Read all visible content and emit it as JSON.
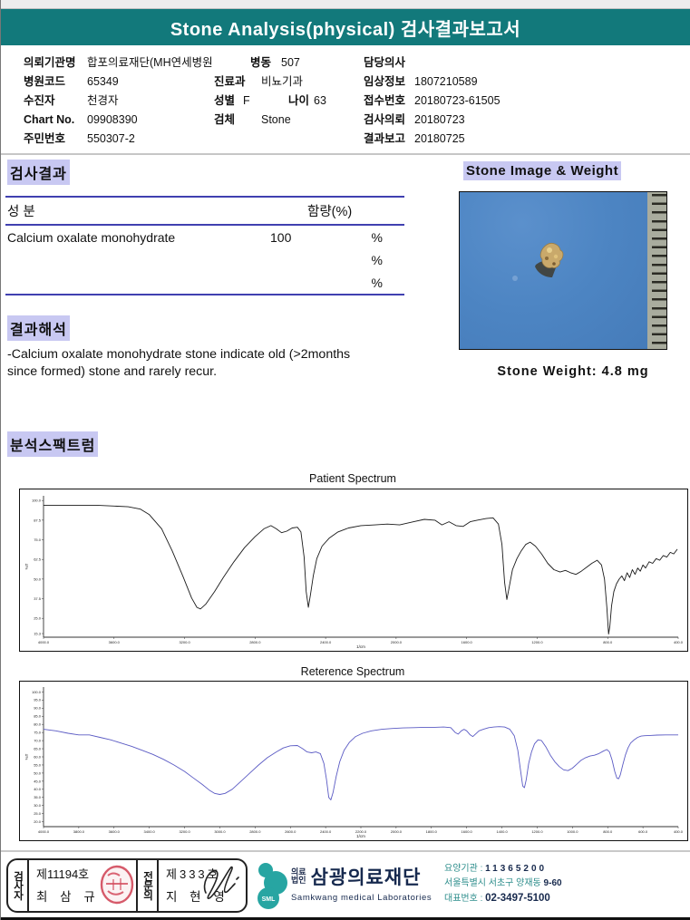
{
  "header": {
    "title": "Stone Analysis(physical) 검사결과보고서"
  },
  "patient_info": {
    "org_label": "의뢰기관명",
    "org_value": "합포의료재단(MH연세병원",
    "ward_label": "병동",
    "ward_value": "507",
    "doctor_label": "담당의사",
    "doctor_value": "",
    "hospital_code_label": "병원코드",
    "hospital_code": "65349",
    "dept_label": "진료과",
    "dept": "비뇨기과",
    "clinical_label": "임상정보",
    "clinical": "1807210589",
    "patient_label": "수진자",
    "patient_name": "천경자",
    "sex_label": "성별",
    "sex": "F",
    "age_label": "나이",
    "age": "63",
    "receipt_label": "접수번호",
    "receipt_no": "20180723-61505",
    "chart_label": "Chart No.",
    "chart_no": "09908390",
    "specimen_label": "검체",
    "specimen": "Stone",
    "request_label": "검사의뢰",
    "request_date": "20180723",
    "resident_label": "주민번호",
    "resident_no": "550307-2",
    "report_label": "결과보고",
    "report_date": "20180725"
  },
  "results": {
    "section_title": "검사결과",
    "table": {
      "col_component": "성  분",
      "col_content": "함량(%)",
      "rows": [
        {
          "component": "Calcium oxalate monohydrate",
          "content": "100",
          "unit": "%"
        },
        {
          "component": "",
          "content": "",
          "unit": "%"
        },
        {
          "component": "",
          "content": "",
          "unit": "%"
        }
      ]
    }
  },
  "interpretation": {
    "section_title": "결과해석",
    "lines": [
      " -Calcium oxalate monohydrate stone indicate old (>2months",
      "since formed) stone and rarely recur."
    ]
  },
  "stone": {
    "section_title": "Stone Image & Weight",
    "weight_label": "Stone Weight: 4.8 mg"
  },
  "spectrum": {
    "section_title": "분석스팩트럼"
  },
  "chart_data": [
    {
      "type": "line",
      "title": "Patient Spectrum",
      "xlabel": "1/cm",
      "ylabel": "%T",
      "color": "#1a1a1a",
      "xlim": [
        4000,
        400
      ],
      "ylim": [
        13,
        103
      ],
      "x_ticks": [
        "4000.0",
        "3600.0",
        "3200.0",
        "2800.0",
        "2400.0",
        "2000.0",
        "1600.0",
        "1200.0",
        "800.0",
        "400.0"
      ],
      "y_ticks": [
        "100.0",
        "87.5",
        "75.0",
        "62.5",
        "50.0",
        "37.5",
        "25.0",
        "15.3"
      ],
      "legend": "none",
      "grid": false,
      "points": [
        [
          4000,
          97
        ],
        [
          3850,
          97
        ],
        [
          3700,
          97
        ],
        [
          3600,
          96.5
        ],
        [
          3520,
          96
        ],
        [
          3450,
          94.5
        ],
        [
          3400,
          91
        ],
        [
          3330,
          82
        ],
        [
          3270,
          68
        ],
        [
          3210,
          52
        ],
        [
          3160,
          38
        ],
        [
          3130,
          32
        ],
        [
          3110,
          31
        ],
        [
          3080,
          34
        ],
        [
          3030,
          42
        ],
        [
          2980,
          51
        ],
        [
          2920,
          61
        ],
        [
          2860,
          70
        ],
        [
          2800,
          77
        ],
        [
          2750,
          82
        ],
        [
          2710,
          84
        ],
        [
          2680,
          82
        ],
        [
          2650,
          79.5
        ],
        [
          2620,
          80.5
        ],
        [
          2590,
          82.5
        ],
        [
          2560,
          83
        ],
        [
          2540,
          80
        ],
        [
          2522,
          64
        ],
        [
          2510,
          42
        ],
        [
          2498,
          32
        ],
        [
          2486,
          40
        ],
        [
          2470,
          52
        ],
        [
          2450,
          63
        ],
        [
          2420,
          71
        ],
        [
          2380,
          76
        ],
        [
          2330,
          80
        ],
        [
          2270,
          82.5
        ],
        [
          2200,
          84
        ],
        [
          2120,
          84.5
        ],
        [
          2050,
          85
        ],
        [
          1980,
          84.5
        ],
        [
          1900,
          86.5
        ],
        [
          1840,
          88
        ],
        [
          1780,
          87.5
        ],
        [
          1740,
          84.5
        ],
        [
          1700,
          86.5
        ],
        [
          1660,
          84
        ],
        [
          1620,
          83.5
        ],
        [
          1580,
          86.5
        ],
        [
          1540,
          87.5
        ],
        [
          1490,
          88.5
        ],
        [
          1450,
          89
        ],
        [
          1420,
          85
        ],
        [
          1400,
          72
        ],
        [
          1385,
          48
        ],
        [
          1372,
          37
        ],
        [
          1360,
          44
        ],
        [
          1340,
          56
        ],
        [
          1315,
          63
        ],
        [
          1290,
          68
        ],
        [
          1265,
          72
        ],
        [
          1240,
          73.5
        ],
        [
          1210,
          71
        ],
        [
          1175,
          66
        ],
        [
          1140,
          60
        ],
        [
          1105,
          56
        ],
        [
          1070,
          54.5
        ],
        [
          1040,
          55.5
        ],
        [
          1010,
          54
        ],
        [
          980,
          53
        ],
        [
          950,
          55
        ],
        [
          920,
          57.5
        ],
        [
          890,
          60
        ],
        [
          860,
          62
        ],
        [
          835,
          59
        ],
        [
          818,
          50
        ],
        [
          805,
          32
        ],
        [
          795,
          15
        ],
        [
          788,
          20
        ],
        [
          778,
          33
        ],
        [
          765,
          42
        ],
        [
          750,
          47
        ],
        [
          735,
          50
        ],
        [
          720,
          52
        ],
        [
          705,
          49
        ],
        [
          690,
          54
        ],
        [
          675,
          51
        ],
        [
          660,
          56
        ],
        [
          645,
          53
        ],
        [
          630,
          57
        ],
        [
          615,
          55
        ],
        [
          600,
          59
        ],
        [
          585,
          57
        ],
        [
          565,
          61
        ],
        [
          545,
          60
        ],
        [
          525,
          63
        ],
        [
          505,
          62
        ],
        [
          485,
          65
        ],
        [
          465,
          64
        ],
        [
          445,
          67
        ],
        [
          425,
          66
        ],
        [
          405,
          69
        ]
      ]
    },
    {
      "type": "line",
      "title": "Reterence Spectrum",
      "xlabel": "1/cm",
      "ylabel": "%T",
      "color": "#5b5bc4",
      "xlim": [
        4000,
        400
      ],
      "ylim": [
        17,
        103
      ],
      "x_ticks": [
        "4000.0",
        "3800.0",
        "3600.0",
        "3400.0",
        "3200.0",
        "3000.0",
        "2800.0",
        "2600.0",
        "2400.0",
        "2200.0",
        "2000.0",
        "1800.0",
        "1600.0",
        "1400.0",
        "1200.0",
        "1000.0",
        "800.0",
        "600.0",
        "400.0"
      ],
      "y_ticks": [
        "100.0",
        "95.0",
        "90.0",
        "85.0",
        "80.0",
        "75.0",
        "70.0",
        "65.0",
        "60.0",
        "55.0",
        "50.0",
        "45.0",
        "40.0",
        "35.0",
        "30.0",
        "25.0",
        "20.0"
      ],
      "legend": "none",
      "grid": false,
      "points": [
        [
          4000,
          77
        ],
        [
          3930,
          76
        ],
        [
          3860,
          74.5
        ],
        [
          3800,
          73.5
        ],
        [
          3740,
          73.5
        ],
        [
          3680,
          72
        ],
        [
          3620,
          70.5
        ],
        [
          3560,
          68.5
        ],
        [
          3500,
          66.5
        ],
        [
          3440,
          64
        ],
        [
          3380,
          61.5
        ],
        [
          3320,
          58.5
        ],
        [
          3260,
          55
        ],
        [
          3200,
          51
        ],
        [
          3150,
          47
        ],
        [
          3100,
          43
        ],
        [
          3060,
          39.5
        ],
        [
          3030,
          37.5
        ],
        [
          3000,
          36.8
        ],
        [
          2970,
          37.5
        ],
        [
          2930,
          40
        ],
        [
          2880,
          45
        ],
        [
          2830,
          50
        ],
        [
          2780,
          55
        ],
        [
          2730,
          59.5
        ],
        [
          2680,
          63
        ],
        [
          2640,
          65.5
        ],
        [
          2600,
          66.8
        ],
        [
          2560,
          67
        ],
        [
          2530,
          65
        ],
        [
          2505,
          63
        ],
        [
          2480,
          62.5
        ],
        [
          2455,
          63
        ],
        [
          2430,
          62
        ],
        [
          2410,
          56
        ],
        [
          2395,
          46
        ],
        [
          2382,
          35
        ],
        [
          2370,
          33.5
        ],
        [
          2358,
          38
        ],
        [
          2340,
          48
        ],
        [
          2320,
          57
        ],
        [
          2295,
          64
        ],
        [
          2265,
          69
        ],
        [
          2230,
          72.5
        ],
        [
          2190,
          74.5
        ],
        [
          2140,
          76
        ],
        [
          2080,
          77
        ],
        [
          2020,
          77.5
        ],
        [
          1960,
          77.8
        ],
        [
          1900,
          78
        ],
        [
          1840,
          78.2
        ],
        [
          1780,
          78.2
        ],
        [
          1730,
          78.4
        ],
        [
          1690,
          78
        ],
        [
          1665,
          75
        ],
        [
          1648,
          74
        ],
        [
          1630,
          76
        ],
        [
          1615,
          77
        ],
        [
          1600,
          76
        ],
        [
          1580,
          73.5
        ],
        [
          1565,
          72.5
        ],
        [
          1550,
          74
        ],
        [
          1530,
          76
        ],
        [
          1505,
          77
        ],
        [
          1475,
          78
        ],
        [
          1445,
          78.4
        ],
        [
          1415,
          78.6
        ],
        [
          1385,
          78.4
        ],
        [
          1355,
          77
        ],
        [
          1330,
          73
        ],
        [
          1310,
          64
        ],
        [
          1295,
          52
        ],
        [
          1282,
          42
        ],
        [
          1272,
          41
        ],
        [
          1262,
          46
        ],
        [
          1248,
          56
        ],
        [
          1232,
          63
        ],
        [
          1215,
          68
        ],
        [
          1195,
          70.5
        ],
        [
          1175,
          70
        ],
        [
          1150,
          66
        ],
        [
          1125,
          61
        ],
        [
          1100,
          57
        ],
        [
          1075,
          54
        ],
        [
          1050,
          52
        ],
        [
          1025,
          51.5
        ],
        [
          1000,
          53
        ],
        [
          975,
          55.5
        ],
        [
          950,
          58
        ],
        [
          925,
          59.5
        ],
        [
          900,
          60.5
        ],
        [
          875,
          61
        ],
        [
          850,
          62
        ],
        [
          825,
          63.5
        ],
        [
          805,
          64.5
        ],
        [
          790,
          63
        ],
        [
          775,
          58
        ],
        [
          760,
          51
        ],
        [
          748,
          47
        ],
        [
          738,
          46.5
        ],
        [
          728,
          49
        ],
        [
          715,
          55
        ],
        [
          700,
          61
        ],
        [
          685,
          65.5
        ],
        [
          670,
          68.5
        ],
        [
          650,
          70.5
        ],
        [
          630,
          72
        ],
        [
          610,
          72.8
        ],
        [
          590,
          73
        ],
        [
          560,
          73.2
        ],
        [
          520,
          73.4
        ],
        [
          470,
          73.5
        ],
        [
          400,
          73.5
        ]
      ]
    }
  ],
  "footer": {
    "examiner": {
      "role": "검사자",
      "cert_no": "제11194호",
      "name": "최 삼 규"
    },
    "specialist": {
      "role": "전문의",
      "cert_no": "제333호",
      "name": "지 현 영"
    },
    "org": {
      "logo_text": "SML",
      "type_line1": "의료",
      "type_line2": "법인",
      "name": "삼광의료재단",
      "name_en": "Samkwang medical Laboratories",
      "care_org_label": "요양기관",
      "care_org_colon": " : ",
      "care_org_no": "11365200",
      "address": "서울특별시 서초구 양재동 ",
      "address_no": "9-60",
      "phone_label": "대표번호",
      "phone_colon": " : ",
      "phone": "02-3497-5100"
    }
  },
  "colors": {
    "banner_teal": "#12797b",
    "highlight_lavender": "#c8c8f2",
    "table_line_blue": "#4040b0",
    "reference_curve_blue": "#5b5bc4",
    "logo_teal": "#27a5a2",
    "stamp_red": "#d2495a",
    "footer_navy": "#17294d"
  }
}
